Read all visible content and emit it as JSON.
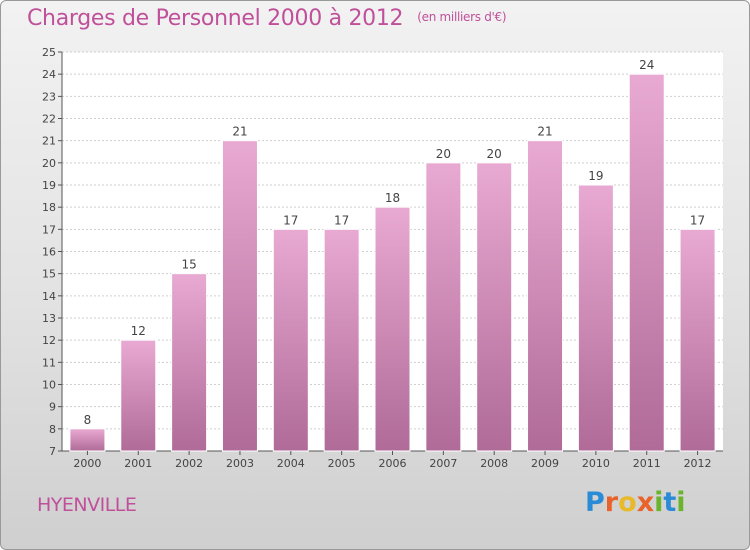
{
  "title": "Charges de Personnel 2000 à 2012",
  "subtitle": "(en milliers d'€)",
  "place": "HYENVILLE",
  "logo": {
    "letters": [
      "P",
      "r",
      "o",
      "x",
      "i",
      "t",
      "i"
    ],
    "colors": [
      "#2a8bd6",
      "#e8622a",
      "#e8b92a",
      "#e8622a",
      "#6ab42d",
      "#2a8bd6",
      "#6ab42d"
    ]
  },
  "colors": {
    "bar_top": "#e8a9d2",
    "bar_bottom": "#b06b98",
    "accent": "#c0509a"
  },
  "chart_data": {
    "type": "bar",
    "title": "Charges de Personnel 2000 à 2012",
    "subtitle": "(en milliers d'€)",
    "categories": [
      "2000",
      "2001",
      "2002",
      "2003",
      "2004",
      "2005",
      "2006",
      "2007",
      "2008",
      "2009",
      "2010",
      "2011",
      "2012"
    ],
    "values": [
      8,
      12,
      15,
      21,
      17,
      17,
      18,
      20,
      20,
      21,
      19,
      24,
      17
    ],
    "ylim": [
      7,
      25
    ],
    "yticks": [
      7,
      8,
      9,
      10,
      11,
      12,
      13,
      14,
      15,
      16,
      17,
      18,
      19,
      20,
      21,
      22,
      23,
      24,
      25
    ],
    "grid": true,
    "xlabel": "",
    "ylabel": ""
  }
}
